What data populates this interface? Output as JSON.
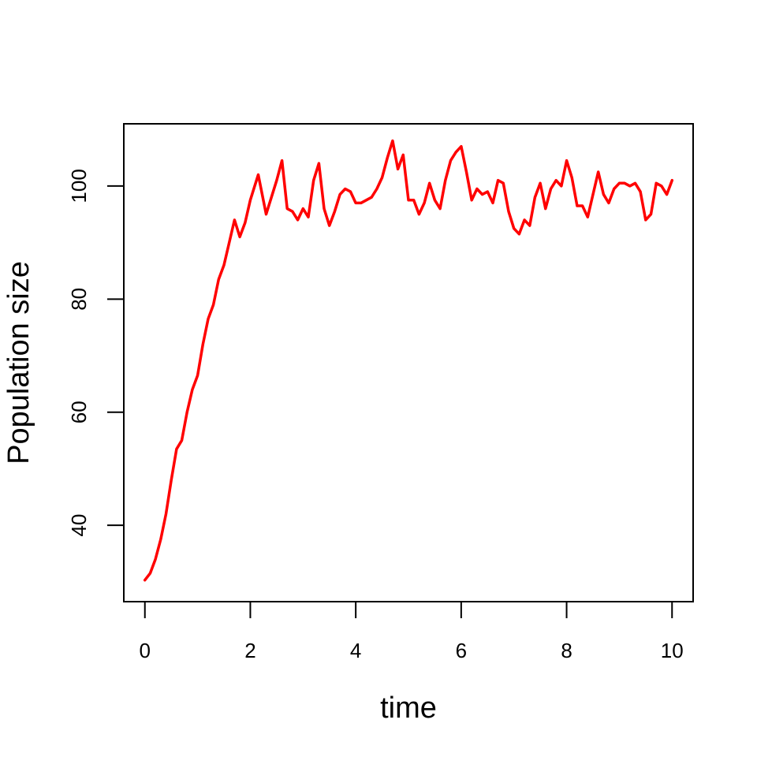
{
  "chart_data": {
    "type": "line",
    "title": "",
    "xlabel": "time",
    "ylabel": "Population size",
    "xlim": [
      -0.4,
      10.4
    ],
    "ylim": [
      26.5,
      111
    ],
    "x_ticks": [
      0,
      2,
      4,
      6,
      8,
      10
    ],
    "y_ticks": [
      40,
      60,
      80,
      100
    ],
    "grid": false,
    "legend": "none",
    "line_color": "#ff0000",
    "series": [
      {
        "x": [
          0,
          0.1,
          0.2,
          0.3,
          0.4,
          0.5,
          0.6,
          0.7,
          0.8,
          0.9,
          1.0,
          1.1,
          1.2,
          1.3,
          1.4,
          1.5,
          1.6,
          1.7,
          1.8,
          1.9,
          2.0,
          2.15,
          2.3,
          2.4,
          2.5,
          2.6,
          2.7,
          2.8,
          2.9,
          3.0,
          3.1,
          3.2,
          3.3,
          3.4,
          3.5,
          3.6,
          3.7,
          3.8,
          3.9,
          4.0,
          4.1,
          4.2,
          4.3,
          4.4,
          4.5,
          4.6,
          4.7,
          4.8,
          4.9,
          5.0,
          5.1,
          5.2,
          5.3,
          5.4,
          5.5,
          5.6,
          5.7,
          5.8,
          5.9,
          6.0,
          6.1,
          6.2,
          6.3,
          6.4,
          6.5,
          6.6,
          6.7,
          6.8,
          6.9,
          7.0,
          7.1,
          7.2,
          7.3,
          7.4,
          7.5,
          7.6,
          7.7,
          7.8,
          7.9,
          8.0,
          8.1,
          8.2,
          8.3,
          8.4,
          8.5,
          8.6,
          8.7,
          8.8,
          8.9,
          9.0,
          9.1,
          9.2,
          9.3,
          9.4,
          9.5,
          9.6,
          9.7,
          9.8,
          9.9,
          10.0
        ],
        "values": [
          30.3,
          31.5,
          34.0,
          37.5,
          42.0,
          48.0,
          53.5,
          55.0,
          60.0,
          64.0,
          66.5,
          72.0,
          76.5,
          79.0,
          83.5,
          86.0,
          90.0,
          94.0,
          91.0,
          93.5,
          97.5,
          102.0,
          95.0,
          98.0,
          101.0,
          104.5,
          96.0,
          95.5,
          94.0,
          96.0,
          94.5,
          101.0,
          104.0,
          96.0,
          93.0,
          95.5,
          98.5,
          99.5,
          99.0,
          97.0,
          97.0,
          97.5,
          98.0,
          99.5,
          101.5,
          105.0,
          108.0,
          103.0,
          105.5,
          97.5,
          97.5,
          95.0,
          97.0,
          100.5,
          97.5,
          96.0,
          101.0,
          104.5,
          106.0,
          107.0,
          102.5,
          97.5,
          99.5,
          98.5,
          99.0,
          97.0,
          101.0,
          100.5,
          95.5,
          92.5,
          91.5,
          94.0,
          93.0,
          98.0,
          100.5,
          96.0,
          99.5,
          101.0,
          100.0,
          104.5,
          101.5,
          96.5,
          96.5,
          94.5,
          98.5,
          102.5,
          98.5,
          97.0,
          99.5,
          100.5,
          100.5,
          100.0,
          100.5,
          99.0,
          94.0,
          95.0,
          100.5,
          100.0,
          98.5,
          101.0
        ]
      }
    ]
  }
}
